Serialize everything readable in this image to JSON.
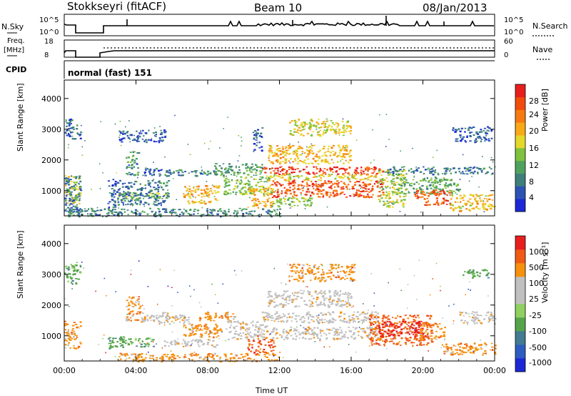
{
  "header": {
    "station": "Stokkseyri (fitACF)",
    "beam": "Beam 10",
    "date": "08/Jan/2013"
  },
  "strips": {
    "nsky_label": "N.Sky",
    "nsky_ticks": [
      "10^5",
      "10^0"
    ],
    "nsearch_label": "N.Search",
    "nsearch_ticks": [
      "10^5",
      "10^0"
    ],
    "freq_label": "Freq.",
    "freq_unit": "[MHz]",
    "freq_ticks": [
      "18",
      "8"
    ],
    "nave_label": "Nave",
    "nave_ticks": [
      "60",
      "0"
    ],
    "cpid_label": "CPID",
    "cpid_value": "normal (fast) 151"
  },
  "colors": {
    "power": [
      "#1c28d6",
      "#2c53b4",
      "#3e7f7c",
      "#4fa25e",
      "#7ec23e",
      "#e4d82a",
      "#f9a818",
      "#f77a10",
      "#f24c0c",
      "#e81e1e"
    ],
    "velocity": [
      "#e81e1e",
      "#f05a14",
      "#f7900c",
      "#c0c0c0",
      "#c0c0c0",
      "#8fd061",
      "#55a44a",
      "#427b92",
      "#2e5dc1",
      "#1c28d6"
    ]
  },
  "chart_data": [
    {
      "type": "heatmap",
      "title": "",
      "quantity": "Power",
      "xlabel": "",
      "ylabel": "Slant Range [km]",
      "xlim": [
        "00:00",
        "00:00"
      ],
      "ylim": [
        180,
        4600
      ],
      "x_ticks": [
        "00:00",
        "04:00",
        "08:00",
        "12:00",
        "16:00",
        "20:00",
        "00:00"
      ],
      "y_ticks": [
        1000,
        2000,
        3000,
        4000
      ],
      "colorbar": {
        "label": "Power [dB]",
        "ticks": [
          4,
          8,
          12,
          16,
          20,
          24,
          28
        ],
        "range": [
          0,
          30
        ]
      },
      "blobs": [
        {
          "t0": 0.0,
          "t1": 0.9,
          "r0": 2700,
          "r1": 3350,
          "v": 6
        },
        {
          "t0": 0.0,
          "t1": 0.9,
          "r0": 600,
          "r1": 1500,
          "v": 16
        },
        {
          "t0": 0.0,
          "t1": 0.9,
          "r0": 300,
          "r1": 1500,
          "v": 7
        },
        {
          "t0": 2.4,
          "t1": 2.9,
          "r0": 300,
          "r1": 1400,
          "v": 6
        },
        {
          "t0": 2.9,
          "t1": 5.8,
          "r0": 750,
          "r1": 950,
          "v": 14
        },
        {
          "t0": 2.9,
          "t1": 5.8,
          "r0": 550,
          "r1": 1350,
          "v": 7
        },
        {
          "t0": 3.4,
          "t1": 4.1,
          "r0": 1500,
          "r1": 2300,
          "v": 9
        },
        {
          "t0": 3.0,
          "t1": 5.6,
          "r0": 2600,
          "r1": 3000,
          "v": 5
        },
        {
          "t0": 4.3,
          "t1": 5.4,
          "r0": 1500,
          "r1": 1800,
          "v": 6
        },
        {
          "t0": 5.5,
          "t1": 8.5,
          "r0": 1500,
          "r1": 1700,
          "v": 8
        },
        {
          "t0": 6.6,
          "t1": 8.6,
          "r0": 600,
          "r1": 1200,
          "v": 19
        },
        {
          "t0": 8.3,
          "t1": 11.0,
          "r0": 1500,
          "r1": 1900,
          "v": 10
        },
        {
          "t0": 8.8,
          "t1": 11.6,
          "r0": 900,
          "r1": 1500,
          "v": 13
        },
        {
          "t0": 10.2,
          "t1": 11.6,
          "r0": 450,
          "r1": 1100,
          "v": 19
        },
        {
          "t0": 10.5,
          "t1": 11.0,
          "r0": 2300,
          "r1": 3100,
          "v": 5
        },
        {
          "t0": 11.0,
          "t1": 17.8,
          "r0": 1550,
          "r1": 1800,
          "v": 27
        },
        {
          "t0": 11.2,
          "t1": 17.6,
          "r0": 1350,
          "r1": 1550,
          "v": 17
        },
        {
          "t0": 11.5,
          "t1": 17.8,
          "r0": 800,
          "r1": 1350,
          "v": 25
        },
        {
          "t0": 11.3,
          "t1": 16.0,
          "r0": 1900,
          "r1": 2500,
          "v": 19
        },
        {
          "t0": 12.5,
          "t1": 16.0,
          "r0": 2800,
          "r1": 3350,
          "v": 17
        },
        {
          "t0": 11.5,
          "t1": 14.0,
          "r0": 500,
          "r1": 800,
          "v": 14
        },
        {
          "t0": 17.5,
          "t1": 19.0,
          "r0": 450,
          "r1": 1700,
          "v": 15
        },
        {
          "t0": 18.0,
          "t1": 24.0,
          "r0": 1550,
          "r1": 1800,
          "v": 7
        },
        {
          "t0": 18.5,
          "t1": 22.0,
          "r0": 900,
          "r1": 1450,
          "v": 11
        },
        {
          "t0": 19.5,
          "t1": 21.5,
          "r0": 550,
          "r1": 1050,
          "v": 25
        },
        {
          "t0": 21.5,
          "t1": 24.0,
          "r0": 350,
          "r1": 900,
          "v": 18
        },
        {
          "t0": 21.6,
          "t1": 23.8,
          "r0": 2600,
          "r1": 3100,
          "v": 5
        },
        {
          "t0": 0.0,
          "t1": 12.0,
          "r0": 180,
          "r1": 450,
          "v": 8
        }
      ]
    },
    {
      "type": "heatmap",
      "title": "",
      "quantity": "Velocity",
      "xlabel": "Time UT",
      "ylabel": "Slant Range [km]",
      "xlim": [
        "00:00",
        "00:00"
      ],
      "ylim": [
        180,
        4600
      ],
      "x_ticks": [
        "00:00",
        "04:00",
        "08:00",
        "12:00",
        "16:00",
        "20:00",
        "00:00"
      ],
      "y_ticks": [
        1000,
        2000,
        3000,
        4000
      ],
      "colorbar": {
        "label": "Velocity [m s⁻¹]",
        "ticks": [
          1000,
          500,
          100,
          25,
          -25,
          -100,
          -500,
          -1000
        ]
      },
      "blobs": [
        {
          "t0": 0.0,
          "t1": 0.9,
          "r0": 2700,
          "r1": 3350,
          "c": 6
        },
        {
          "t0": 0.0,
          "t1": 0.9,
          "r0": 600,
          "r1": 1500,
          "c": 2
        },
        {
          "t0": 2.4,
          "t1": 3.3,
          "r0": 600,
          "r1": 1000,
          "c": 6
        },
        {
          "t0": 3.0,
          "t1": 5.0,
          "r0": 650,
          "r1": 950,
          "c": 6
        },
        {
          "t0": 3.4,
          "t1": 4.2,
          "r0": 1500,
          "r1": 2300,
          "c": 2
        },
        {
          "t0": 4.2,
          "t1": 5.8,
          "r0": 1450,
          "r1": 1800,
          "c": 3
        },
        {
          "t0": 5.6,
          "t1": 7.0,
          "r0": 1350,
          "r1": 1700,
          "c": 3
        },
        {
          "t0": 5.5,
          "t1": 8.5,
          "r0": 650,
          "r1": 900,
          "c": 3
        },
        {
          "t0": 6.6,
          "t1": 8.8,
          "r0": 950,
          "r1": 1400,
          "c": 2
        },
        {
          "t0": 7.5,
          "t1": 9.5,
          "r0": 1500,
          "r1": 1800,
          "c": 2
        },
        {
          "t0": 9.0,
          "t1": 11.3,
          "r0": 900,
          "r1": 1500,
          "c": 3
        },
        {
          "t0": 10.2,
          "t1": 11.7,
          "r0": 450,
          "r1": 900,
          "c": 1
        },
        {
          "t0": 11.0,
          "t1": 17.5,
          "r0": 1450,
          "r1": 1800,
          "c": 3
        },
        {
          "t0": 11.5,
          "t1": 17.5,
          "r0": 900,
          "r1": 1300,
          "c": 3
        },
        {
          "t0": 11.3,
          "t1": 16.0,
          "r0": 1950,
          "r1": 2500,
          "c": 3
        },
        {
          "t0": 12.5,
          "t1": 16.2,
          "r0": 2800,
          "r1": 3350,
          "c": 2
        },
        {
          "t0": 17.0,
          "t1": 20.5,
          "r0": 700,
          "r1": 1700,
          "c": 1
        },
        {
          "t0": 17.5,
          "t1": 20.0,
          "r0": 1000,
          "r1": 1500,
          "c": 0
        },
        {
          "t0": 19.8,
          "t1": 21.2,
          "r0": 900,
          "r1": 1450,
          "c": 2
        },
        {
          "t0": 21.0,
          "t1": 24.0,
          "r0": 400,
          "r1": 800,
          "c": 2
        },
        {
          "t0": 22.0,
          "t1": 24.0,
          "r0": 1400,
          "r1": 1800,
          "c": 3
        },
        {
          "t0": 22.2,
          "t1": 23.6,
          "r0": 2900,
          "r1": 3200,
          "c": 6
        },
        {
          "t0": 3.0,
          "t1": 12.0,
          "r0": 180,
          "r1": 450,
          "c": 2
        }
      ]
    }
  ]
}
